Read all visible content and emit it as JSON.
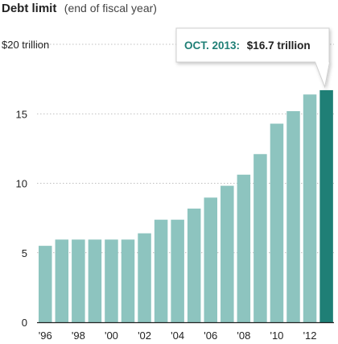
{
  "chart_data": {
    "type": "bar",
    "title": "Debt limit",
    "subtitle": "(end of fiscal year)",
    "ylim": [
      0,
      20
    ],
    "yticks": [
      {
        "value": 0,
        "label": "0"
      },
      {
        "value": 5,
        "label": "5"
      },
      {
        "value": 10,
        "label": "10"
      },
      {
        "value": 15,
        "label": "15"
      },
      {
        "value": 20,
        "label": "$20 trillion"
      }
    ],
    "categories": [
      "1996",
      "1997",
      "1998",
      "1999",
      "2000",
      "2001",
      "2002",
      "2003",
      "2004",
      "2005",
      "2006",
      "2007",
      "2008",
      "2009",
      "2010",
      "2011",
      "2012",
      "2013"
    ],
    "values": [
      5.5,
      5.95,
      5.95,
      5.95,
      5.95,
      5.95,
      6.4,
      7.38,
      7.38,
      8.18,
      8.97,
      9.82,
      10.62,
      12.1,
      14.29,
      15.19,
      16.39,
      16.7
    ],
    "xtick_labels": [
      {
        "index": 0,
        "label": "'96"
      },
      {
        "index": 2,
        "label": "'98"
      },
      {
        "index": 4,
        "label": "'00"
      },
      {
        "index": 6,
        "label": "'02"
      },
      {
        "index": 8,
        "label": "'04"
      },
      {
        "index": 10,
        "label": "'06"
      },
      {
        "index": 12,
        "label": "'08"
      },
      {
        "index": 14,
        "label": "'10"
      },
      {
        "index": 16,
        "label": "'12"
      }
    ],
    "highlight_index": 17,
    "annotation": {
      "prefix": "OCT. 2013:",
      "value_text": "$16.7 trillion"
    },
    "colors": {
      "bar": "#8dc4bf",
      "highlight": "#1f7f76",
      "annotation_prefix": "#1f7f76",
      "annotation_text": "#222222",
      "grid": "#aaaaaa",
      "axis": "#222222"
    }
  }
}
